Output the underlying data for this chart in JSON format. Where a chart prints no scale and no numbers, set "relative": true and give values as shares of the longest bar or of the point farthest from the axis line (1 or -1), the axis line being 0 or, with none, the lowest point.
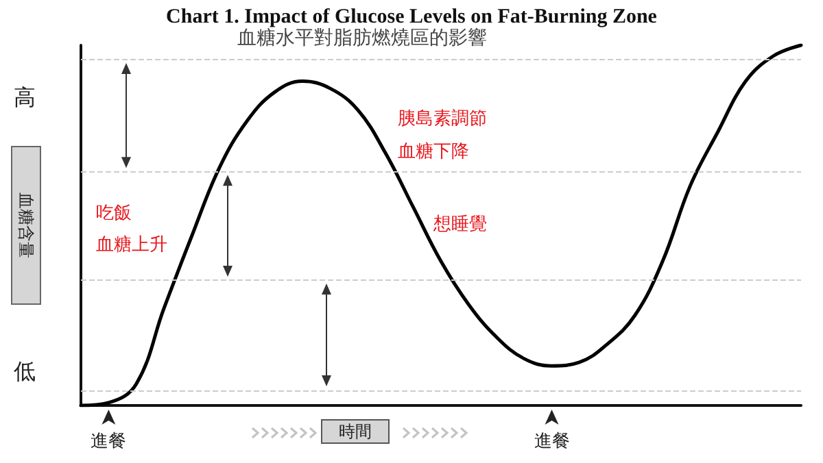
{
  "chart_data": {
    "type": "line",
    "title": "Chart 1. Impact of Glucose Levels on Fat-Burning Zone",
    "subtitle": "血糖水平對脂肪燃燒區的影響",
    "xlabel": "時間",
    "ylabel": "血糖含量",
    "annotations": [
      "高",
      "低",
      "吃飯",
      "血糖上升",
      "胰島素調節",
      "血糖下降",
      "想睡覺"
    ],
    "categories": [
      null,
      "進餐",
      null,
      null,
      null,
      null,
      null,
      null,
      null,
      null,
      null,
      null,
      null,
      null,
      null,
      null,
      null,
      "進餐",
      null,
      null,
      null,
      null,
      null,
      null,
      null,
      null,
      null
    ],
    "relative": true,
    "series": [
      {
        "color": "#000000",
        "values": [
          0,
          0.008,
          0.06,
          0.27,
          0.47,
          0.66,
          0.79,
          0.87,
          0.9,
          0.88,
          0.82,
          0.7,
          0.55,
          0.4,
          0.28,
          0.19,
          0.13,
          0.11,
          0.12,
          0.17,
          0.25,
          0.4,
          0.61,
          0.76,
          0.9,
          0.97,
          1
        ]
      }
    ],
    "ref_lines": [
      {
        "axis": "y",
        "value": 0.958,
        "color": "#cccccc",
        "line_style": "dashed"
      },
      {
        "axis": "y",
        "value": 0.648,
        "color": "#cccccc",
        "line_style": "dashed"
      },
      {
        "axis": "y",
        "value": 0.346,
        "color": "#cccccc",
        "line_style": "dashed"
      },
      {
        "axis": "y",
        "value": 0.042,
        "color": "#cccccc",
        "line_style": "dashed"
      }
    ],
    "marker": "none",
    "line_style": "solid",
    "grid": false
  }
}
